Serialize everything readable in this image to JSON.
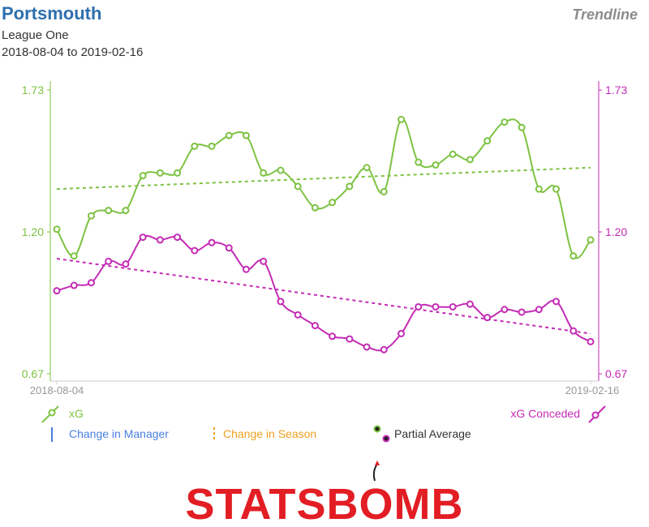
{
  "header": {
    "team": "Portsmouth",
    "league": "League One",
    "date_range": "2018-08-04 to 2019-02-16",
    "view": "Trendline"
  },
  "colors": {
    "xg": "#7dc242",
    "xg_conceded": "#c42bb5",
    "manager": "#4a7fe0",
    "season": "#f0a020",
    "axis_text": "#999999",
    "logo_red": "#e21d24",
    "logo_dark": "#222222"
  },
  "legend": {
    "xg": "xG",
    "xg_conceded": "xG Conceded",
    "manager": "Change in Manager",
    "season": "Change in Season",
    "partial": "Partial Average"
  },
  "logo": {
    "text": "STATSBOMB",
    "icon": "bomb-icon"
  },
  "chart_data": {
    "type": "line",
    "x_labels": [
      "2018-08-04",
      "2019-02-16"
    ],
    "ylim": [
      0.67,
      1.73
    ],
    "yticks_left": [
      "1.73",
      "1.20",
      "0.67"
    ],
    "yticks_right": [
      "1.73",
      "1.20",
      "0.67"
    ],
    "grid": false,
    "legend_position": "bottom",
    "series": [
      {
        "name": "xG",
        "color": "#7dc242",
        "values": [
          1.21,
          1.11,
          1.26,
          1.28,
          1.28,
          1.41,
          1.42,
          1.42,
          1.52,
          1.52,
          1.56,
          1.56,
          1.42,
          1.43,
          1.37,
          1.29,
          1.31,
          1.37,
          1.44,
          1.35,
          1.62,
          1.46,
          1.45,
          1.49,
          1.47,
          1.54,
          1.61,
          1.59,
          1.36,
          1.36,
          1.11,
          1.17
        ],
        "trend": [
          1.36,
          1.44
        ]
      },
      {
        "name": "xG Conceded",
        "color": "#c42bb5",
        "values": [
          0.98,
          1.0,
          1.01,
          1.09,
          1.08,
          1.18,
          1.17,
          1.18,
          1.13,
          1.16,
          1.14,
          1.06,
          1.09,
          0.94,
          0.89,
          0.85,
          0.81,
          0.8,
          0.77,
          0.76,
          0.82,
          0.92,
          0.92,
          0.92,
          0.93,
          0.88,
          0.91,
          0.9,
          0.91,
          0.94,
          0.83,
          0.79
        ],
        "trend": [
          1.1,
          0.82
        ]
      }
    ]
  }
}
